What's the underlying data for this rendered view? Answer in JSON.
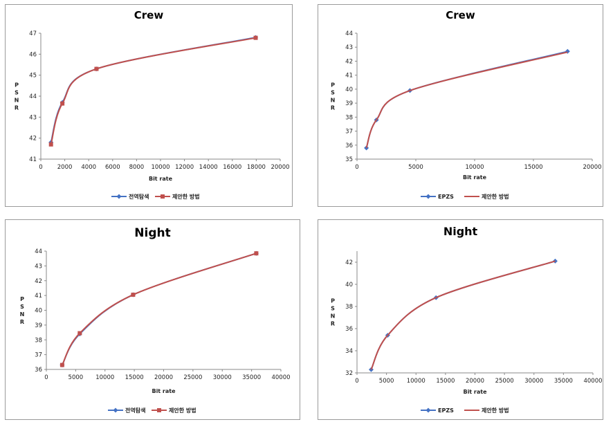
{
  "chart_data": [
    {
      "type": "line",
      "title": "Crew",
      "xlabel": "Bit rate",
      "ylabel": "PSNR",
      "xlim": [
        0,
        20000
      ],
      "ylim": [
        41,
        47
      ],
      "xticks": [
        "0",
        "2000",
        "4000",
        "6000",
        "8000",
        "10000",
        "12000",
        "14000",
        "16000",
        "18000",
        "20000"
      ],
      "yticks": [
        "41",
        "42",
        "43",
        "44",
        "45",
        "46",
        "47"
      ],
      "series": [
        {
          "name": "전역탐색",
          "color": "#4472C4",
          "marker": "diamond",
          "x": [
            850,
            1800,
            4650,
            17950
          ],
          "y": [
            41.8,
            43.7,
            45.3,
            46.8
          ]
        },
        {
          "name": "제안한 방법",
          "color": "#C0504D",
          "marker": "square",
          "x": [
            850,
            1800,
            4650,
            17950
          ],
          "y": [
            41.7,
            43.65,
            45.3,
            46.78
          ]
        }
      ]
    },
    {
      "type": "line",
      "title": "Crew",
      "xlabel": "Bit rate",
      "ylabel": "PSNR",
      "xlim": [
        0,
        20000
      ],
      "ylim": [
        35,
        44
      ],
      "xticks": [
        "0",
        "5000",
        "10000",
        "15000",
        "20000"
      ],
      "yticks": [
        "35",
        "36",
        "37",
        "38",
        "39",
        "40",
        "41",
        "42",
        "43",
        "44"
      ],
      "series": [
        {
          "name": "EPZS",
          "color": "#4472C4",
          "marker": "diamond",
          "x": [
            800,
            1650,
            4500,
            17900
          ],
          "y": [
            35.8,
            37.8,
            39.9,
            42.7
          ]
        },
        {
          "name": "제안한 방법",
          "color": "#C0504D",
          "marker": "none",
          "x": [
            800,
            1650,
            4500,
            17900
          ],
          "y": [
            35.8,
            37.8,
            39.9,
            42.65
          ]
        }
      ]
    },
    {
      "type": "line",
      "title": "Night",
      "xlabel": "Bit rate",
      "ylabel": "PSNR",
      "xlim": [
        0,
        40000
      ],
      "ylim": [
        36,
        44
      ],
      "xticks": [
        "0",
        "5000",
        "10000",
        "15000",
        "20000",
        "25000",
        "30000",
        "35000",
        "40000"
      ],
      "yticks": [
        "36",
        "37",
        "38",
        "39",
        "40",
        "41",
        "42",
        "43",
        "44"
      ],
      "series": [
        {
          "name": "전역탐색",
          "color": "#4472C4",
          "marker": "diamond",
          "x": [
            2700,
            5700,
            14800,
            35800
          ],
          "y": [
            36.3,
            38.4,
            41.05,
            43.85
          ]
        },
        {
          "name": "제안한 방법",
          "color": "#C0504D",
          "marker": "square",
          "x": [
            2700,
            5700,
            14800,
            35800
          ],
          "y": [
            36.3,
            38.45,
            41.05,
            43.85
          ]
        }
      ]
    },
    {
      "type": "line",
      "title": "Night",
      "xlabel": "Bit rate",
      "ylabel": "PSNR",
      "xlim": [
        0,
        40000
      ],
      "ylim": [
        32,
        43
      ],
      "xticks": [
        "0",
        "5000",
        "10000",
        "15000",
        "20000",
        "25000",
        "30000",
        "35000",
        "40000"
      ],
      "yticks": [
        "32",
        "34",
        "36",
        "38",
        "40",
        "42"
      ],
      "series": [
        {
          "name": "EPZS",
          "color": "#4472C4",
          "marker": "diamond",
          "x": [
            2400,
            5200,
            13400,
            33600
          ],
          "y": [
            32.3,
            35.4,
            38.8,
            42.1
          ]
        },
        {
          "name": "제안한 방법",
          "color": "#C0504D",
          "marker": "none",
          "x": [
            2400,
            5200,
            13400,
            33600
          ],
          "y": [
            32.3,
            35.4,
            38.8,
            42.1
          ]
        }
      ]
    }
  ]
}
